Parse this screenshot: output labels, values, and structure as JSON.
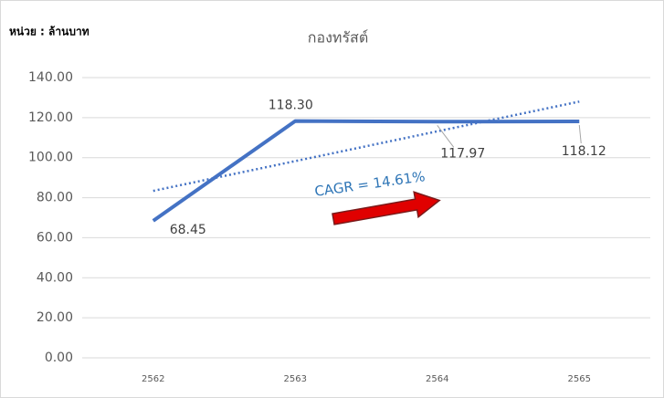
{
  "chart_data": {
    "type": "line",
    "title": "กองทรัสต์",
    "unit_label": "หน่วย : ล้านบาท",
    "categories": [
      "2562",
      "2563",
      "2564",
      "2565"
    ],
    "series": [
      {
        "color": "#4472c4",
        "values": [
          68.45,
          118.3,
          117.97,
          118.12
        ],
        "value_labels": [
          "68.45",
          "118.30",
          "117.97",
          "118.12"
        ]
      }
    ],
    "trendline": {
      "color": "#4472c4",
      "values": [
        83.41,
        98.28,
        113.15,
        128.01
      ]
    },
    "annotation": "CAGR = 14.61%",
    "ylim": [
      0,
      140
    ],
    "yticks": [
      {
        "value": 0,
        "label": "0.00"
      },
      {
        "value": 20,
        "label": "20.00"
      },
      {
        "value": 40,
        "label": "40.00"
      },
      {
        "value": 60,
        "label": "60.00"
      },
      {
        "value": 80,
        "label": "80.00"
      },
      {
        "value": 100,
        "label": "100.00"
      },
      {
        "value": 120,
        "label": "120.00"
      },
      {
        "value": 140,
        "label": "140.00"
      }
    ],
    "grid": true
  }
}
